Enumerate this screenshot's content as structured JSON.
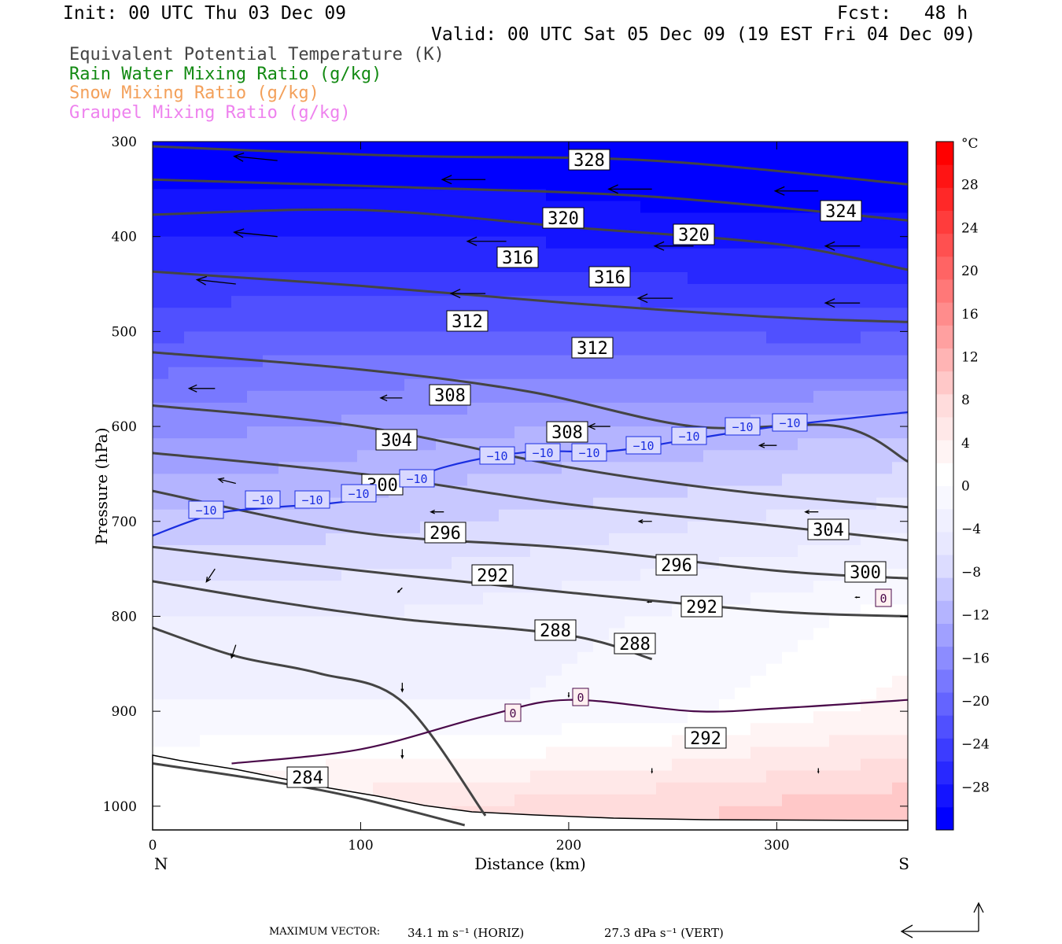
{
  "header": {
    "init": "Init: 00 UTC Thu 03 Dec 09",
    "fcst": "Fcst:   48 h",
    "valid": "Valid: 00 UTC Sat 05 Dec 09 (19 EST Fri 04 Dec 09)"
  },
  "legend": [
    {
      "label": "Equivalent Potential Temperature (K)",
      "color": "#444444"
    },
    {
      "label": "Rain Water Mixing Ratio (g/kg)",
      "color": "#138a13"
    },
    {
      "label": "Snow Mixing Ratio (g/kg)",
      "color": "#f3a05a"
    },
    {
      "label": "Graupel Mixing Ratio (g/kg)",
      "color": "#ee82ee"
    }
  ],
  "footer": {
    "max_vector_label": "MAXIMUM VECTOR:",
    "horiz": "34.1 m s⁻¹ (HORIZ)",
    "vert": "27.3 dPa s⁻¹ (VERT)"
  },
  "chart_data": {
    "type": "heatmap",
    "xlabel": "Distance (km)",
    "ylabel": "Pressure (hPa)",
    "xlim": [
      0,
      363
    ],
    "ylim": [
      1025,
      300
    ],
    "x_ticks": [
      0,
      100,
      200,
      300
    ],
    "y_ticks": [
      300,
      400,
      500,
      600,
      700,
      800,
      900,
      1000
    ],
    "x_endpoint_labels": {
      "left": "N",
      "right": "S"
    },
    "colorbar": {
      "unit": "°C",
      "ticks": [
        28,
        24,
        20,
        16,
        12,
        8,
        4,
        0,
        -4,
        -8,
        -12,
        -16,
        -20,
        -24,
        -28
      ],
      "tick_labels": [
        "28",
        "24",
        "20",
        "16",
        "12",
        "8",
        "4",
        "0",
        "−4",
        "−8",
        "−12",
        "−16",
        "−20",
        "−24",
        "−28"
      ],
      "range": [
        -32,
        32
      ],
      "colors": [
        "#0000ff",
        "#1414ff",
        "#2828ff",
        "#3c3cff",
        "#5050ff",
        "#6464ff",
        "#7878ff",
        "#8c8cff",
        "#a0a0ff",
        "#b4b4ff",
        "#c8c8ff",
        "#dcdcff",
        "#e8e8ff",
        "#f0f0ff",
        "#f8f8ff",
        "#ffffff",
        "#fff4f4",
        "#ffe8e8",
        "#ffdcdc",
        "#ffc8c8",
        "#ffb4b4",
        "#ffa0a0",
        "#ff8c8c",
        "#ff7878",
        "#ff6464",
        "#ff5050",
        "#ff3c3c",
        "#ff2828",
        "#ff1414",
        "#ff0000"
      ]
    },
    "temperature_field": {
      "x": [
        0,
        60,
        120,
        180,
        240,
        300,
        363
      ],
      "p": [
        300,
        400,
        500,
        600,
        700,
        800,
        900,
        1000
      ],
      "values_c": [
        [
          -32,
          -32,
          -32,
          -32,
          -32,
          -32,
          -32
        ],
        [
          -28,
          -28,
          -28,
          -28,
          -29,
          -29,
          -29
        ],
        [
          -22,
          -21,
          -21,
          -21,
          -21,
          -22,
          -22
        ],
        [
          -16,
          -15,
          -14,
          -13,
          -13,
          -12,
          -11
        ],
        [
          -10,
          -10,
          -9,
          -8,
          -7,
          -6,
          -5
        ],
        [
          -4,
          -4,
          -4,
          -3,
          -2,
          -1,
          1
        ],
        [
          -2,
          -2,
          -2,
          -2,
          -1,
          1,
          3
        ],
        [
          4,
          5,
          6,
          7,
          8,
          9,
          10
        ]
      ]
    },
    "theta_e_contours": [
      {
        "level": 328,
        "label": "328",
        "points": [
          [
            0,
            305
          ],
          [
            120,
            315
          ],
          [
            240,
            320
          ],
          [
            363,
            345
          ]
        ]
      },
      {
        "level": 324,
        "label": "324",
        "points": [
          [
            0,
            340
          ],
          [
            120,
            348
          ],
          [
            240,
            358
          ],
          [
            363,
            383
          ]
        ]
      },
      {
        "level": 320,
        "label": "320",
        "points": [
          [
            0,
            377
          ],
          [
            100,
            372
          ],
          [
            200,
            390
          ],
          [
            300,
            408
          ],
          [
            363,
            435
          ]
        ]
      },
      {
        "level": 316,
        "label": "316",
        "points": [
          [
            0,
            437
          ],
          [
            100,
            452
          ],
          [
            200,
            470
          ],
          [
            300,
            485
          ],
          [
            363,
            490
          ]
        ]
      },
      {
        "level": 312,
        "label": "312",
        "points": [
          [
            0,
            522
          ],
          [
            100,
            540
          ],
          [
            180,
            563
          ],
          [
            260,
            600
          ],
          [
            330,
            600
          ],
          [
            363,
            637
          ]
        ]
      },
      {
        "level": 308,
        "label": "308",
        "points": [
          [
            0,
            578
          ],
          [
            100,
            600
          ],
          [
            200,
            643
          ],
          [
            280,
            668
          ],
          [
            363,
            685
          ]
        ]
      },
      {
        "level": 304,
        "label": "304",
        "points": [
          [
            0,
            628
          ],
          [
            100,
            650
          ],
          [
            200,
            682
          ],
          [
            300,
            705
          ],
          [
            363,
            720
          ]
        ]
      },
      {
        "level": 300,
        "label": "300",
        "points": [
          [
            0,
            668
          ],
          [
            100,
            712
          ],
          [
            200,
            728
          ],
          [
            300,
            752
          ],
          [
            363,
            760
          ]
        ]
      },
      {
        "level": 296,
        "label": "296",
        "points": [
          [
            0,
            727
          ],
          [
            100,
            752
          ],
          [
            200,
            775
          ],
          [
            300,
            795
          ],
          [
            363,
            800
          ]
        ]
      },
      {
        "level": 292,
        "label": "292",
        "points": [
          [
            0,
            763
          ],
          [
            60,
            785
          ],
          [
            120,
            803
          ],
          [
            200,
            820
          ],
          [
            240,
            845
          ]
        ]
      },
      {
        "level": 288,
        "label": "288",
        "points": [
          [
            0,
            812
          ],
          [
            40,
            842
          ],
          [
            80,
            860
          ],
          [
            120,
            890
          ],
          [
            160,
            1010
          ]
        ]
      },
      {
        "level": 284,
        "label": "284",
        "points": [
          [
            0,
            955
          ],
          [
            60,
            975
          ],
          [
            100,
            992
          ],
          [
            150,
            1020
          ]
        ]
      }
    ],
    "theta_e_labels": [
      "328",
      "324",
      "320",
      "320",
      "316",
      "316",
      "312",
      "312",
      "308",
      "308",
      "304",
      "304",
      "300",
      "300",
      "296",
      "296",
      "292",
      "292",
      "292",
      "288",
      "288",
      "284"
    ],
    "isotherm_minus10": {
      "level": -10,
      "label": "−10",
      "points": [
        [
          0,
          715
        ],
        [
          30,
          692
        ],
        [
          60,
          685
        ],
        [
          100,
          676
        ],
        [
          140,
          643
        ],
        [
          180,
          627
        ],
        [
          220,
          626
        ],
        [
          260,
          613
        ],
        [
          300,
          600
        ],
        [
          363,
          585
        ]
      ]
    },
    "isotherm_zero": {
      "level": 0,
      "label": "0",
      "points": [
        [
          38,
          955
        ],
        [
          100,
          940
        ],
        [
          160,
          905
        ],
        [
          200,
          888
        ],
        [
          260,
          900
        ],
        [
          300,
          897
        ],
        [
          363,
          888
        ]
      ]
    },
    "wind_vectors": [
      {
        "x": 60,
        "p": 320,
        "u": -1.0,
        "w": 0.1
      },
      {
        "x": 160,
        "p": 340,
        "u": -1.0,
        "w": 0.0
      },
      {
        "x": 240,
        "p": 350,
        "u": -1.0,
        "w": 0.0
      },
      {
        "x": 320,
        "p": 352,
        "u": -1.0,
        "w": 0.0
      },
      {
        "x": 60,
        "p": 400,
        "u": -1.0,
        "w": 0.1
      },
      {
        "x": 170,
        "p": 405,
        "u": -0.9,
        "w": 0.0
      },
      {
        "x": 260,
        "p": 410,
        "u": -0.9,
        "w": 0.0
      },
      {
        "x": 340,
        "p": 410,
        "u": -0.8,
        "w": 0.0
      },
      {
        "x": 40,
        "p": 450,
        "u": -0.9,
        "w": 0.1
      },
      {
        "x": 160,
        "p": 460,
        "u": -0.8,
        "w": 0.0
      },
      {
        "x": 250,
        "p": 465,
        "u": -0.8,
        "w": 0.0
      },
      {
        "x": 340,
        "p": 470,
        "u": -0.8,
        "w": 0.0
      },
      {
        "x": 30,
        "p": 560,
        "u": -0.6,
        "w": 0.0
      },
      {
        "x": 120,
        "p": 570,
        "u": -0.5,
        "w": 0.0
      },
      {
        "x": 220,
        "p": 600,
        "u": -0.5,
        "w": 0.0
      },
      {
        "x": 300,
        "p": 620,
        "u": -0.4,
        "w": 0.0
      },
      {
        "x": 40,
        "p": 660,
        "u": -0.4,
        "w": 0.1
      },
      {
        "x": 140,
        "p": 690,
        "u": -0.3,
        "w": 0.0
      },
      {
        "x": 240,
        "p": 700,
        "u": -0.3,
        "w": 0.0
      },
      {
        "x": 320,
        "p": 690,
        "u": -0.3,
        "w": 0.0
      },
      {
        "x": 30,
        "p": 750,
        "u": -0.2,
        "w": -0.3
      },
      {
        "x": 120,
        "p": 770,
        "u": -0.1,
        "w": -0.1
      },
      {
        "x": 240,
        "p": 785,
        "u": -0.1,
        "w": 0.0
      },
      {
        "x": 340,
        "p": 780,
        "u": -0.1,
        "w": 0.0
      },
      {
        "x": 40,
        "p": 830,
        "u": -0.1,
        "w": -0.3
      },
      {
        "x": 120,
        "p": 870,
        "u": 0.0,
        "w": -0.2
      },
      {
        "x": 200,
        "p": 880,
        "u": 0.0,
        "w": -0.1
      },
      {
        "x": 120,
        "p": 940,
        "u": 0.0,
        "w": -0.2
      },
      {
        "x": 240,
        "p": 960,
        "u": 0.0,
        "w": -0.1
      },
      {
        "x": 320,
        "p": 960,
        "u": 0.0,
        "w": -0.1
      }
    ]
  }
}
